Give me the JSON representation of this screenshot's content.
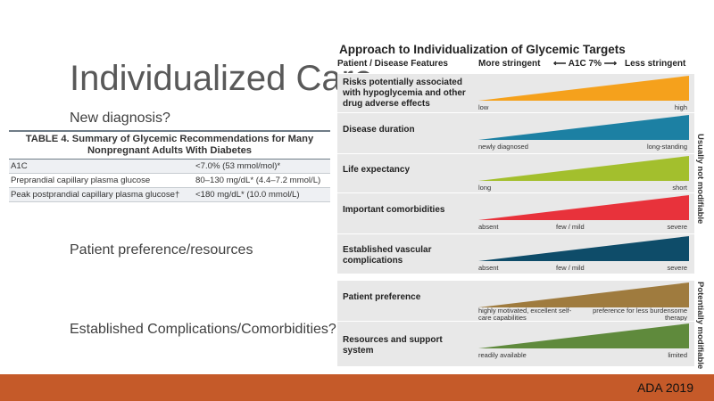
{
  "slide_title": "Individualized Care",
  "bullets": {
    "new_diagnosis": "New diagnosis?",
    "patient_pref": "Patient preference/resources",
    "complications": "Established Complications/Comorbidities?"
  },
  "table4": {
    "title_line1": "TABLE 4. Summary of Glycemic Recommendations for Many",
    "title_line2": "Nonpregnant Adults With Diabetes",
    "rows": [
      {
        "label": "A1C",
        "value": "<7.0% (53 mmol/mol)*"
      },
      {
        "label": "Preprandial capillary plasma glucose",
        "value": "80–130 mg/dL* (4.4–7.2 mmol/L)"
      },
      {
        "label": "Peak postprandial capillary plasma glucose†",
        "value": "<180 mg/dL* (10.0 mmol/L)"
      }
    ]
  },
  "figure": {
    "title": "Approach to Individualization of Glycemic Targets",
    "header_features": "Patient / Disease Features",
    "header_more": "More stringent",
    "header_a1c": "A1C 7%",
    "header_less": "Less stringent",
    "side_not_modifiable": "Usually not modifiable",
    "side_modifiable": "Potentially modifiable",
    "rows": [
      {
        "label": "Risks potentially associated with hypoglycemia and other drug adverse effects",
        "color": "#f5a11c",
        "labels": [
          "low",
          "",
          "high"
        ]
      },
      {
        "label": "Disease duration",
        "color": "#1c80a3",
        "labels": [
          "newly diagnosed",
          "",
          "long-standing"
        ]
      },
      {
        "label": "Life expectancy",
        "color": "#a3bf2d",
        "labels": [
          "long",
          "",
          "short"
        ]
      },
      {
        "label": "Important comorbidities",
        "color": "#e8323b",
        "labels": [
          "absent",
          "few / mild",
          "severe"
        ]
      },
      {
        "label": "Established vascular complications",
        "color": "#0e4c69",
        "labels": [
          "absent",
          "few / mild",
          "severe"
        ]
      },
      {
        "label": "Patient preference",
        "color": "#9f7b3e",
        "labels": [
          "highly motivated, excellent self-care capabilities",
          "",
          "preference for less burdensome therapy"
        ]
      },
      {
        "label": "Resources and support system",
        "color": "#5f8a3c",
        "labels": [
          "readily available",
          "",
          "limited"
        ]
      }
    ]
  },
  "footer": "ADA 2019"
}
